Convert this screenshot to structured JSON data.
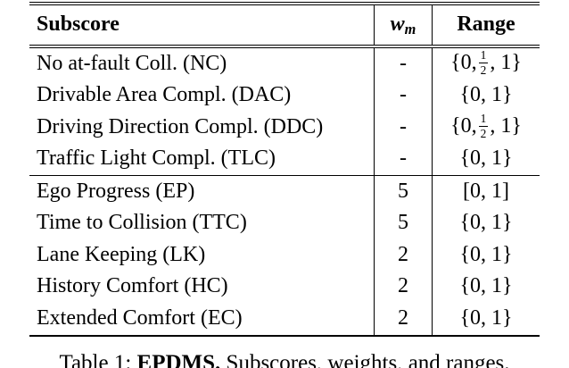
{
  "table": {
    "headers": {
      "subscore": "Subscore",
      "weight_symbol": "w",
      "weight_subscript": "m",
      "range": "Range"
    },
    "section1": [
      {
        "name": "No at-fault Coll. (NC)",
        "weight": "-",
        "range_pre": "{0,",
        "frac_num": "1",
        "frac_den": "2",
        "range_post": ", 1}"
      },
      {
        "name": "Drivable Area Compl. (DAC)",
        "weight": "-",
        "range": "{0, 1}"
      },
      {
        "name": "Driving Direction Compl. (DDC)",
        "weight": "-",
        "range_pre": "{0,",
        "frac_num": "1",
        "frac_den": "2",
        "range_post": ", 1}"
      },
      {
        "name": "Traffic Light Compl. (TLC)",
        "weight": "-",
        "range": "{0, 1}"
      }
    ],
    "section2": [
      {
        "name": "Ego Progress (EP)",
        "weight": "5",
        "range": "[0, 1]"
      },
      {
        "name": "Time to Collision (TTC)",
        "weight": "5",
        "range": "{0, 1}"
      },
      {
        "name": "Lane Keeping (LK)",
        "weight": "2",
        "range": "{0, 1}"
      },
      {
        "name": "History Comfort (HC)",
        "weight": "2",
        "range": "{0, 1}"
      },
      {
        "name": "Extended Comfort (EC)",
        "weight": "2",
        "range": "{0, 1}"
      }
    ]
  },
  "caption": {
    "label": "Table 1:",
    "title_bold": "EPDMS.",
    "text": "Subscores, weights, and ranges."
  }
}
